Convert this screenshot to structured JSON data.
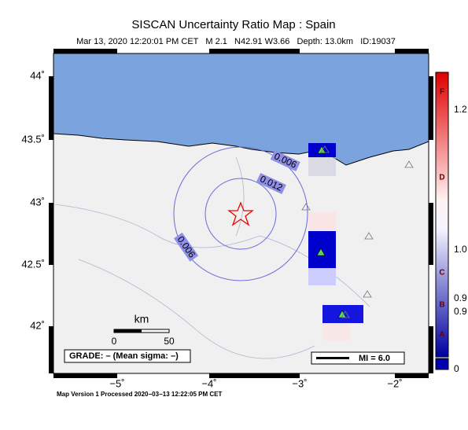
{
  "header": {
    "title": "SISCAN Uncertainty Ratio Map : Spain",
    "subtitle": "Mar 13, 2020 12:20:01 PM CET   M 2.1   N42.91 W3.66   Depth: 13.0km   ID:19037"
  },
  "map": {
    "lat_labels": [
      "44˚",
      "43.5˚",
      "43˚",
      "42.5˚",
      "42˚"
    ],
    "lon_labels": [
      "−5˚",
      "−4˚",
      "−3˚",
      "−2˚"
    ],
    "contour_labels": [
      "0.006",
      "0.012",
      "0.006"
    ],
    "scale": {
      "unit": "km",
      "start": "0",
      "end": "50"
    },
    "grade": "GRADE: – (Mean sigma: –)",
    "mi": "MI = 6.0"
  },
  "colorbar": {
    "grades": [
      "F",
      "D",
      "C",
      "B",
      "A"
    ],
    "values": [
      "1.2",
      "1.0",
      "0.9",
      "0.9",
      "0"
    ]
  },
  "footer": "Map Version 1 Processed 2020−03−13 12:22:05 PM CET"
}
